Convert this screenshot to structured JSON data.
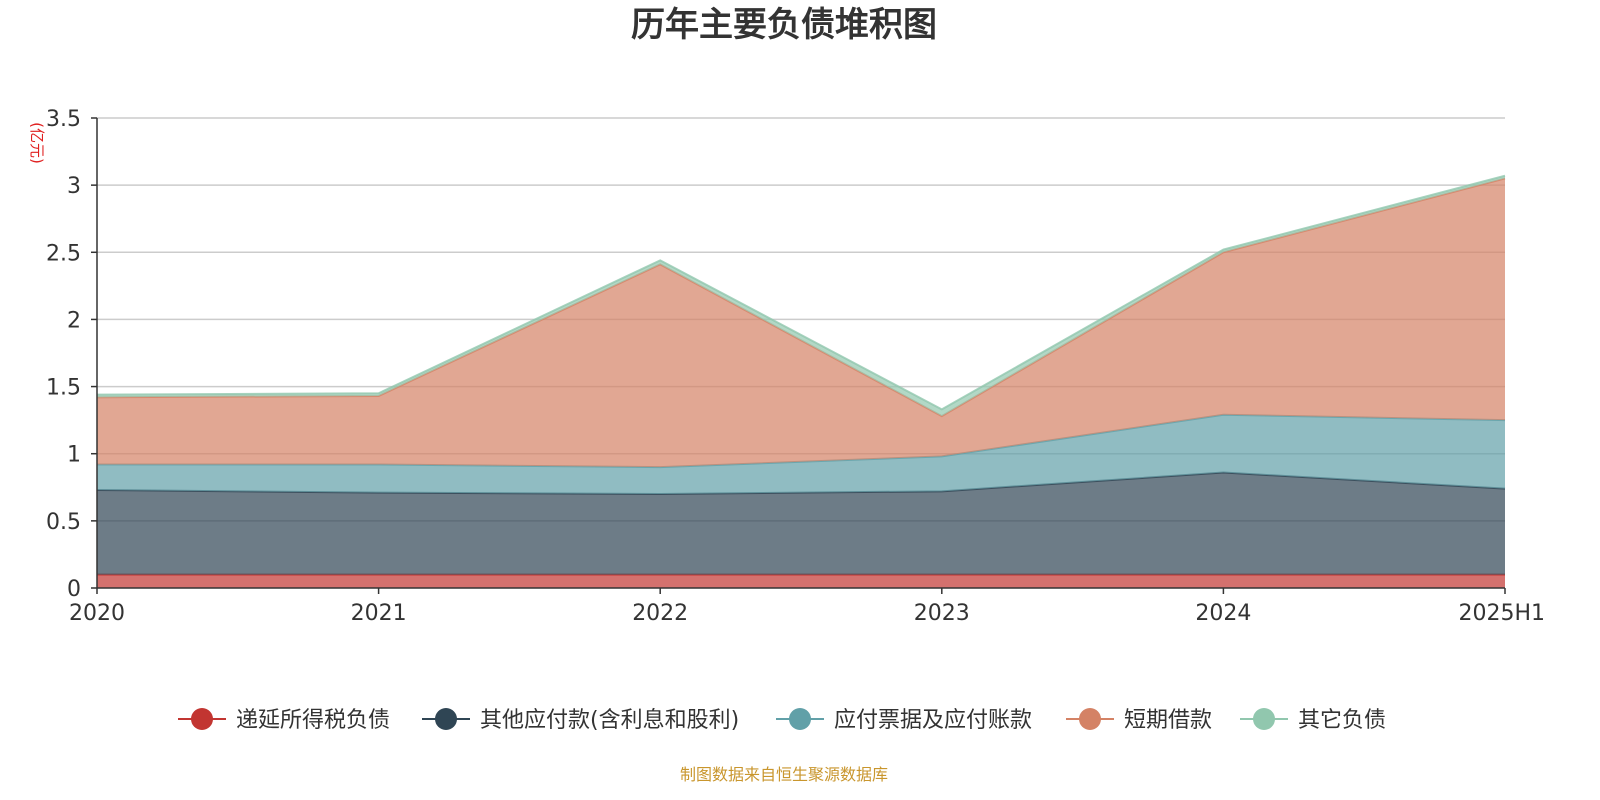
{
  "chart_data": {
    "type": "area",
    "stacked": true,
    "title": "历年主要负债堆积图",
    "unit_label": "(亿元)",
    "categories": [
      "2020",
      "2021",
      "2022",
      "2023",
      "2024",
      "2025H1"
    ],
    "ylim": [
      0,
      3.5
    ],
    "yticks": [
      0,
      0.5,
      1,
      1.5,
      2,
      2.5,
      3,
      3.5
    ],
    "ytick_labels": [
      "0",
      "0.5",
      "1",
      "1.5",
      "2",
      "2.5",
      "3",
      "3.5"
    ],
    "grid": true,
    "legend_position": "bottom",
    "source": "制图数据来自恒生聚源数据库",
    "series": [
      {
        "name": "递延所得税负债",
        "color": "#c23531",
        "values": [
          0.1,
          0.1,
          0.1,
          0.1,
          0.1,
          0.1
        ]
      },
      {
        "name": "其他应付款(含利息和股利)",
        "color": "#2f4554",
        "values": [
          0.63,
          0.61,
          0.6,
          0.62,
          0.76,
          0.64
        ]
      },
      {
        "name": "应付票据及应付账款",
        "color": "#61a0a8",
        "values": [
          0.19,
          0.21,
          0.2,
          0.26,
          0.43,
          0.51
        ]
      },
      {
        "name": "短期借款",
        "color": "#d48265",
        "values": [
          0.5,
          0.51,
          1.51,
          0.3,
          1.21,
          1.8
        ]
      },
      {
        "name": "其它负债",
        "color": "#91c7ae",
        "values": [
          0.02,
          0.02,
          0.03,
          0.05,
          0.02,
          0.02
        ]
      }
    ]
  }
}
